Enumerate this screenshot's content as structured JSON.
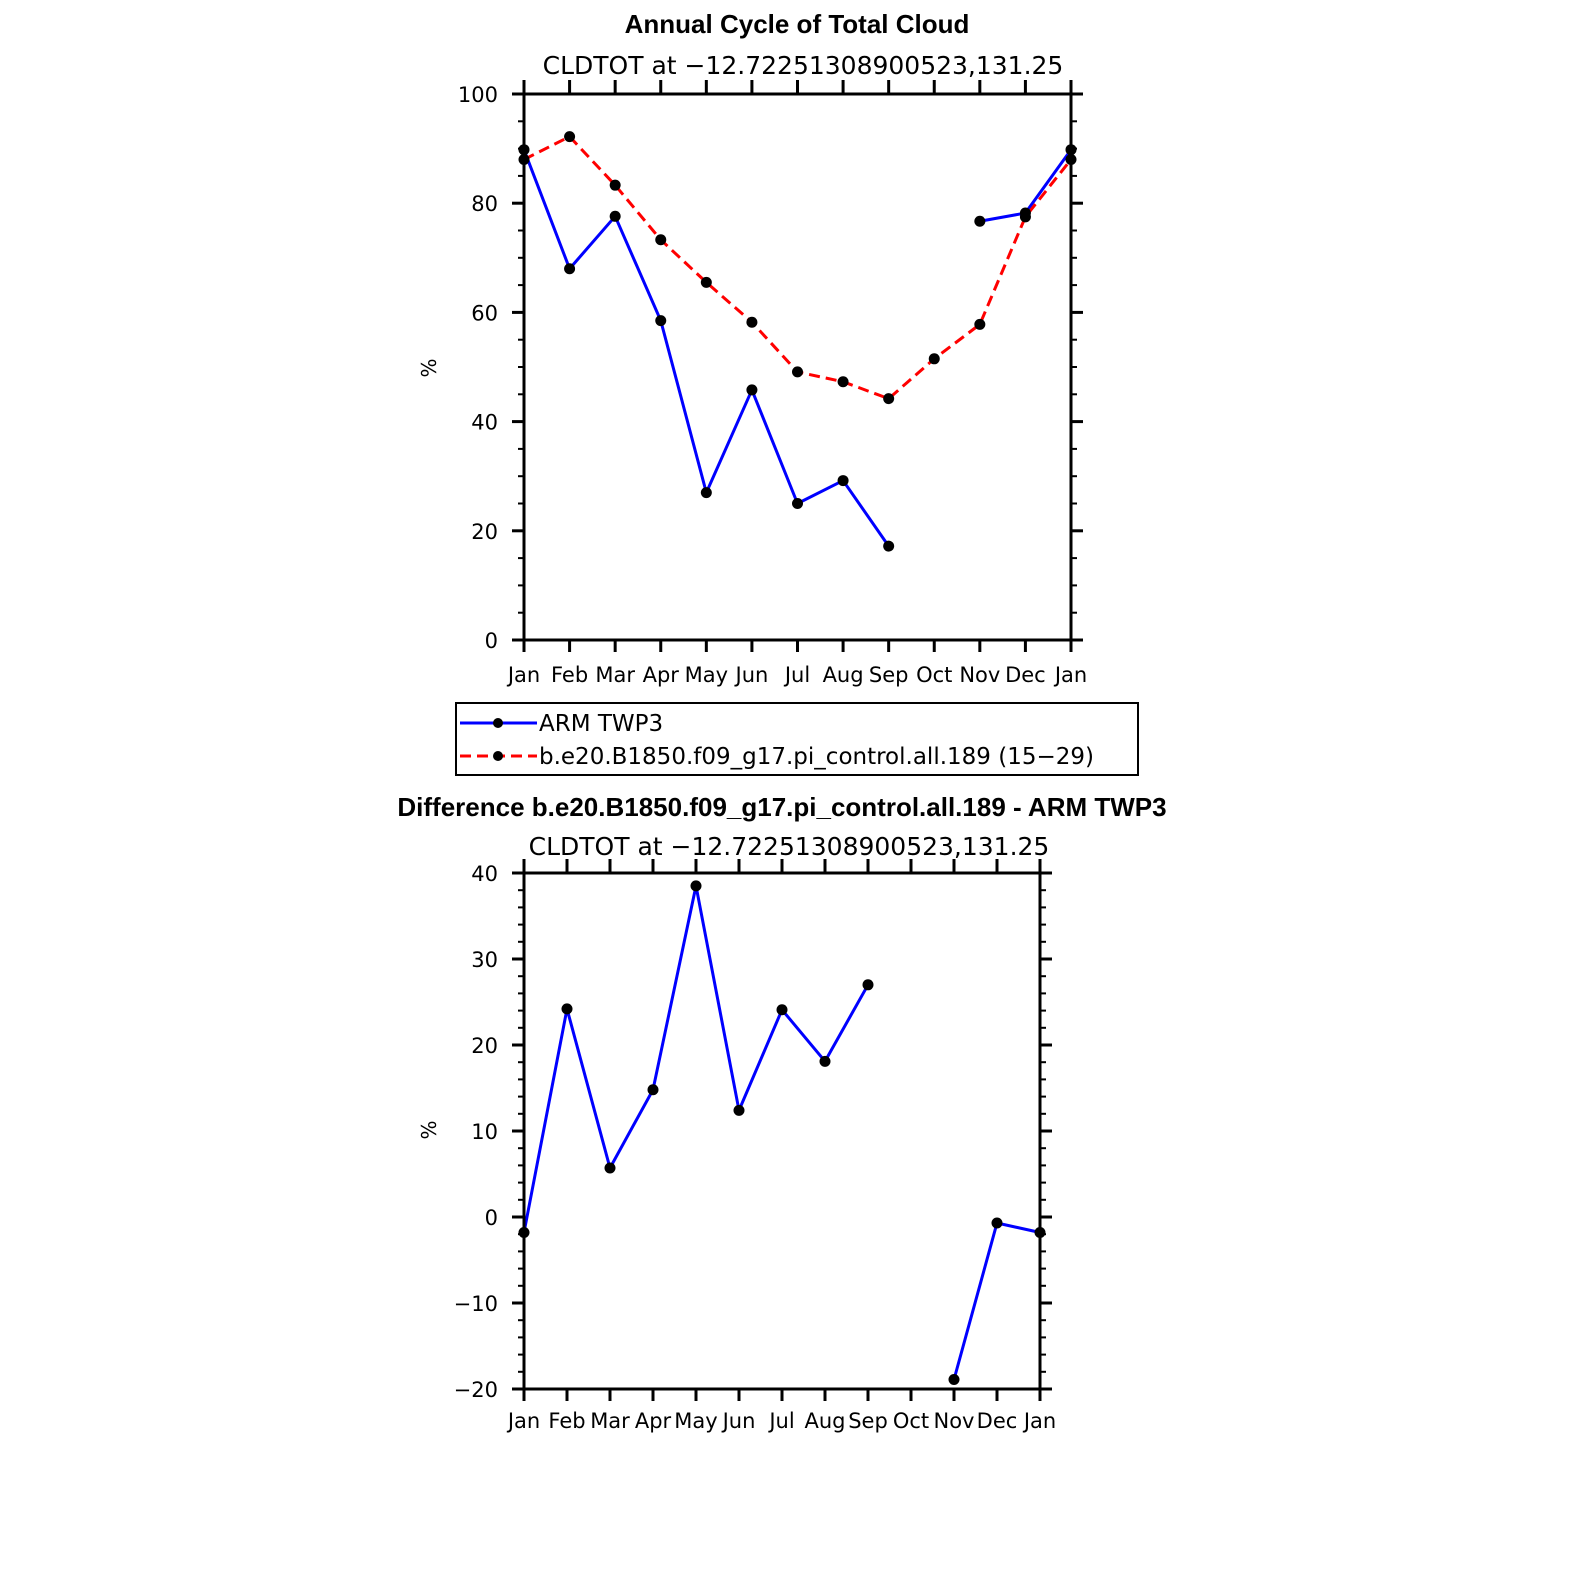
{
  "colors": {
    "obs": "#0000ff",
    "model": "#ff0000",
    "marker": "#000000"
  },
  "chart_data": [
    {
      "type": "line",
      "title": "Annual Cycle of Total Cloud",
      "subtitle": "CLDTOT at −12.72251308900523,131.25",
      "ylabel": "%",
      "ylim": [
        0,
        100
      ],
      "yticks": [
        "0",
        "20",
        "40",
        "60",
        "80",
        "100"
      ],
      "categories": [
        "Jan",
        "Feb",
        "Mar",
        "Apr",
        "May",
        "Jun",
        "Jul",
        "Aug",
        "Sep",
        "Oct",
        "Nov",
        "Dec",
        "Jan"
      ],
      "series": [
        {
          "name": "ARM TWP3",
          "color": "#0000ff",
          "dash": "solid",
          "values": [
            89.8,
            68,
            77.6,
            58.5,
            27,
            45.8,
            25,
            29.2,
            17.2,
            null,
            76.7,
            78.2,
            89.8
          ]
        },
        {
          "name": "b.e20.B1850.f09_g17.pi_control.all.189 (15−29)",
          "color": "#ff0000",
          "dash": "dashed",
          "values": [
            88,
            92.2,
            83.3,
            73.3,
            65.5,
            58.2,
            49.1,
            47.3,
            44.2,
            51.5,
            57.8,
            77.5,
            88
          ]
        }
      ],
      "legend": {
        "position": "below",
        "entries": [
          "ARM TWP3",
          "b.e20.B1850.f09_g17.pi_control.all.189 (15−29)"
        ]
      }
    },
    {
      "type": "line",
      "title": "Difference b.e20.B1850.f09_g17.pi_control.all.189 - ARM TWP3",
      "subtitle": "CLDTOT at −12.72251308900523,131.25",
      "ylabel": "%",
      "ylim": [
        -20,
        40
      ],
      "yticks": [
        "−20",
        "−10",
        "0",
        "10",
        "20",
        "30",
        "40"
      ],
      "categories": [
        "Jan",
        "Feb",
        "Mar",
        "Apr",
        "May",
        "Jun",
        "Jul",
        "Aug",
        "Sep",
        "Oct",
        "Nov",
        "Dec",
        "Jan"
      ],
      "series": [
        {
          "name": "Difference",
          "color": "#0000ff",
          "dash": "solid",
          "values": [
            -1.8,
            24.2,
            5.7,
            14.8,
            38.5,
            12.4,
            24.1,
            18.1,
            27,
            null,
            -18.9,
            -0.7,
            -1.8
          ]
        }
      ]
    }
  ]
}
